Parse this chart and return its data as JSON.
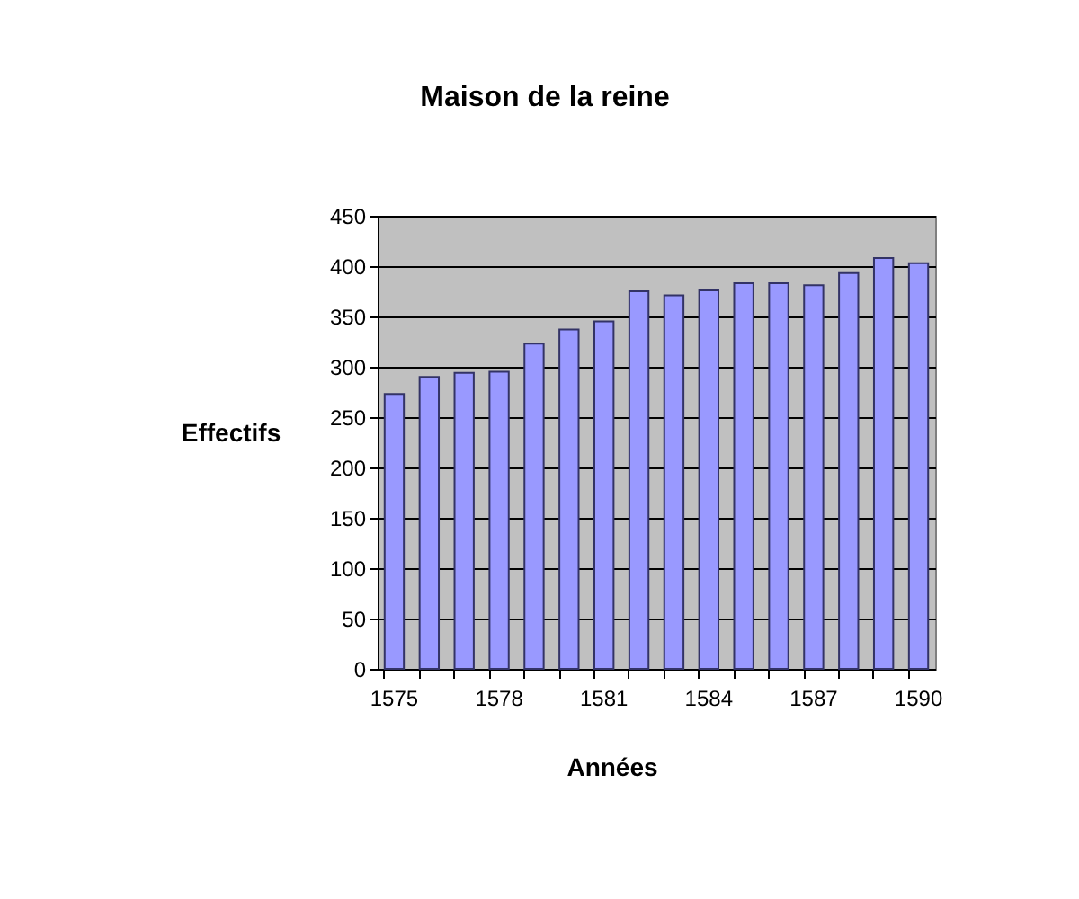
{
  "chart_data": {
    "type": "bar",
    "title": "Maison de la reine",
    "xlabel": "Années",
    "ylabel": "Effectifs",
    "categories": [
      "1575",
      null,
      null,
      "1578",
      null,
      null,
      "1581",
      null,
      null,
      "1584",
      null,
      null,
      "1587",
      null,
      null,
      "1590"
    ],
    "values": [
      273,
      290,
      294,
      295,
      323,
      337,
      345,
      375,
      371,
      376,
      383,
      383,
      381,
      393,
      408,
      403
    ],
    "color": "#9999ff",
    "ylim": [
      0,
      450
    ],
    "yticks": [
      0,
      50,
      100,
      150,
      200,
      250,
      300,
      350,
      400,
      450
    ],
    "grid": "y"
  }
}
